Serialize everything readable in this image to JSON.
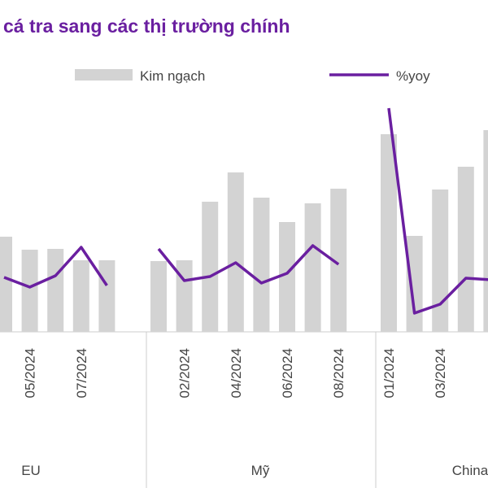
{
  "chart_data": {
    "type": "bar",
    "title": "cá tra sang các thị trường chính",
    "series": [
      {
        "name": "Kim ngạch",
        "color": "#d3d3d3",
        "type": "bar"
      },
      {
        "name": "%yoy",
        "color": "#6a1fa0",
        "type": "line",
        "axis": "y2"
      }
    ],
    "ylim": [
      0,
      300
    ],
    "y2lim": [
      0,
      300
    ],
    "groups": [
      {
        "name": "EU",
        "categories": [
          null,
          "05/2024",
          null,
          "07/2024",
          null
        ],
        "series": [
          {
            "values": [
              117,
              101,
              102,
              88,
              88
            ]
          },
          {
            "values": [
              67,
              55,
              69,
              104,
              57
            ]
          }
        ]
      },
      {
        "name": "Mỹ",
        "categories": [
          null,
          "02/2024",
          null,
          "04/2024",
          null,
          "06/2024",
          null,
          "08/2024"
        ],
        "series": [
          {
            "values": [
              87,
              88,
              160,
              196,
              165,
              135,
              158,
              176
            ]
          },
          {
            "values": [
              102,
              63,
              68,
              85,
              60,
              72,
              106,
              83
            ]
          }
        ]
      },
      {
        "name": "China",
        "categories": [
          "01/2024",
          null,
          "03/2024",
          null,
          null
        ],
        "series": [
          {
            "values": [
              243,
              118,
              175,
              203,
              248
            ]
          },
          {
            "values": [
              275,
              23,
              34,
              66,
              64
            ]
          }
        ]
      }
    ]
  }
}
